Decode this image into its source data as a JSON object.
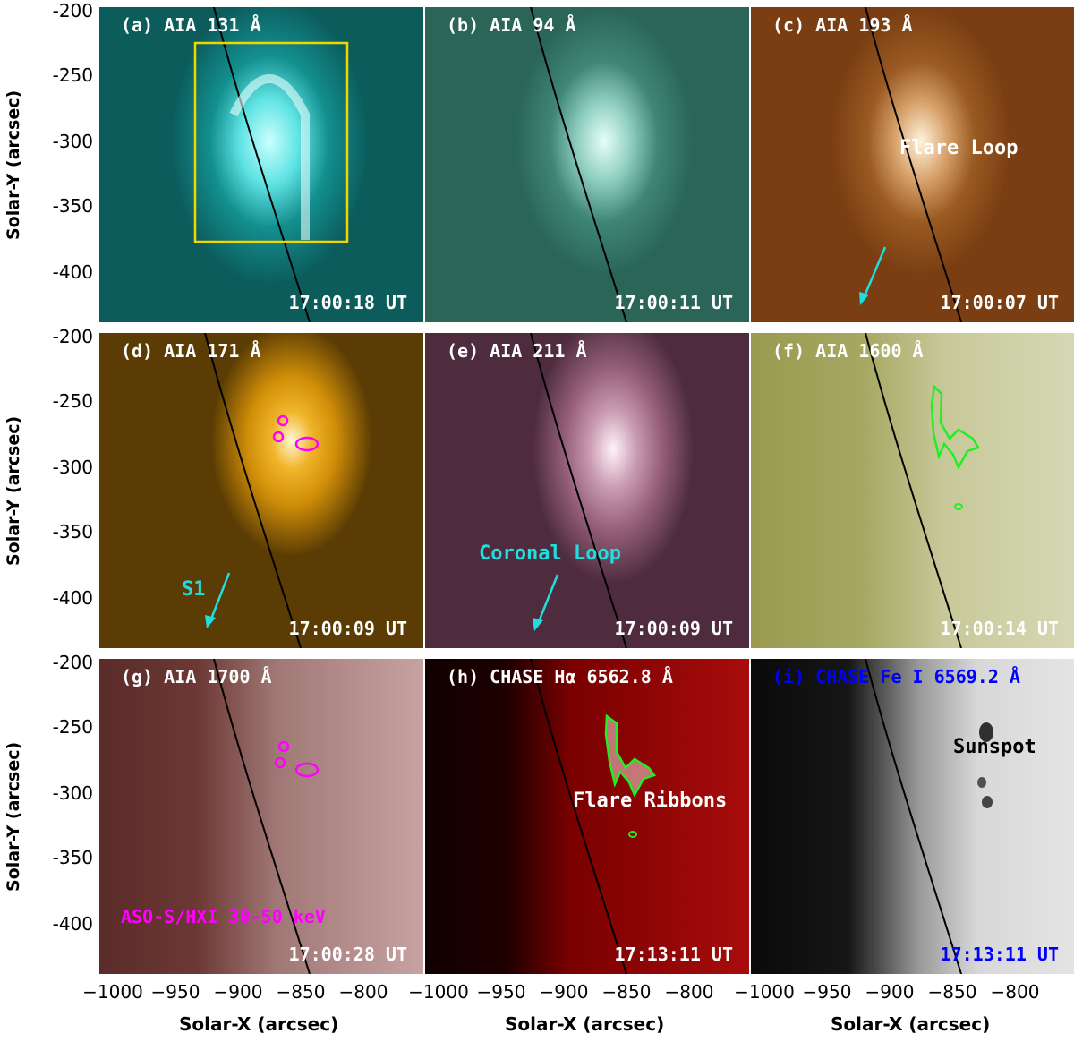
{
  "figure": {
    "y_axis_label": "Solar-Y (arcsec)",
    "x_axis_label": "Solar-X (arcsec)",
    "y_ticks": [
      "-200",
      "-250",
      "-300",
      "-350",
      "-400"
    ],
    "x_ticks_col1": [
      "−1000",
      "−950",
      "−900",
      "−850",
      "−800"
    ],
    "x_ticks_col2": [
      "−1000",
      "−950",
      "−900",
      "−850",
      "−800"
    ],
    "x_ticks_col3": [
      "−1000",
      "−950",
      "−900",
      "−850",
      "−800"
    ]
  },
  "panels": [
    {
      "id": "a",
      "label": "(a) AIA 131 Å",
      "time": "17:00:18 UT",
      "bg": "#10605f",
      "glow": "#d8ffff",
      "text_color": "#ffffff"
    },
    {
      "id": "b",
      "label": "(b) AIA 94 Å",
      "time": "17:00:11 UT",
      "bg": "#2a6e61",
      "glow": "#e6fff8",
      "text_color": "#ffffff"
    },
    {
      "id": "c",
      "label": "(c) AIA 193 Å",
      "time": "17:00:07 UT",
      "bg": "#8f4e1e",
      "glow": "#fff2d8",
      "text_color": "#ffffff"
    },
    {
      "id": "d",
      "label": "(d) AIA 171 Å",
      "time": "17:00:09 UT",
      "bg": "#c78a08",
      "glow": "#fffbe0",
      "text_color": "#ffffff"
    },
    {
      "id": "e",
      "label": "(e) AIA 211 Å",
      "time": "17:00:09 UT",
      "bg": "#8c5873",
      "glow": "#fff0f6",
      "text_color": "#ffffff"
    },
    {
      "id": "f",
      "label": "(f) AIA 1600 Å",
      "time": "17:00:14 UT",
      "bg": "#9c9c5a",
      "glow": "#f4f4d6",
      "text_color": "#ffffff"
    },
    {
      "id": "g",
      "label": "(g) AIA 1700 Å",
      "time": "17:00:28 UT",
      "bg": "#7e4a48",
      "glow": "#f3dcdc",
      "text_color": "#ffffff"
    },
    {
      "id": "h",
      "label": "(h) CHASE Hα 6562.8 Å",
      "time": "17:13:11 UT",
      "bg": "#8a0000",
      "glow": "#ffe6e6",
      "text_color": "#ffffff"
    },
    {
      "id": "i",
      "label": "(i) CHASE Fe I 6569.2 Å",
      "time": "17:13:11 UT",
      "bg": "#c8c8c8",
      "glow": "#ffffff",
      "text_color": "#0000ff"
    }
  ],
  "annotations": {
    "flare_loop": "Flare Loop",
    "s1": "S1",
    "coronal_loop": "Coronal Loop",
    "hxi": "ASO-S/HXI 30-50 keV",
    "flare_ribbons": "Flare Ribbons",
    "sunspot": "Sunspot"
  },
  "colors": {
    "limb": "#000000",
    "box": "#f2d600",
    "arrow": "#22dddd",
    "hxi_contour": "#ff00ff",
    "ribbon_contour": "#22ee22"
  }
}
